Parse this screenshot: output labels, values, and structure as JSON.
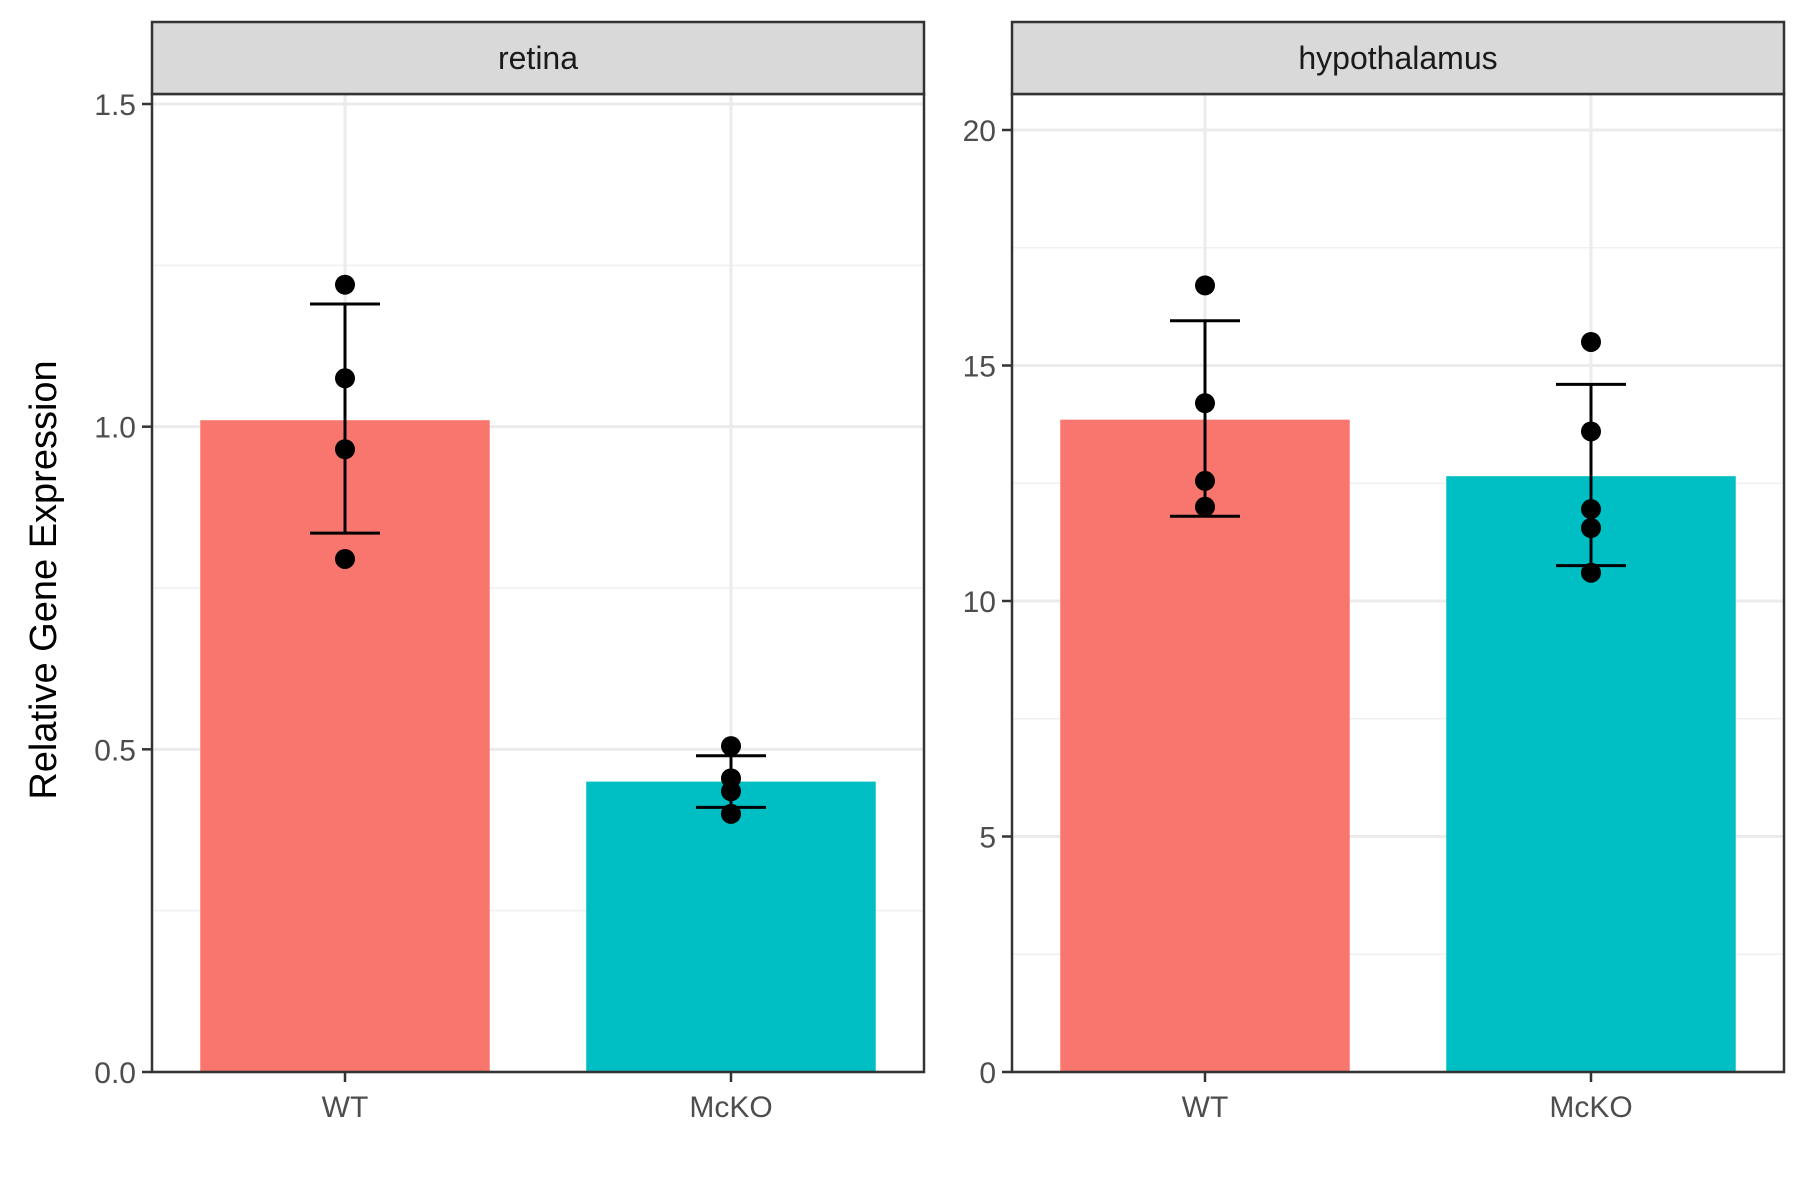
{
  "chart_data": {
    "type": "bar",
    "ylabel": "Relative Gene Expression",
    "categories": [
      "WT",
      "McKO"
    ],
    "colors": {
      "WT": "#F8766D",
      "McKO": "#00BFC4"
    },
    "grid": true,
    "panels": [
      {
        "name": "retina",
        "ylim": [
          0,
          1.5
        ],
        "yticks": [
          0.0,
          0.5,
          1.0,
          1.5
        ],
        "ytick_labels": [
          "0.0",
          "0.5",
          "1.0",
          "1.5"
        ],
        "means": [
          1.01,
          0.45
        ],
        "error_bars": [
          [
            0.835,
            1.19
          ],
          [
            0.41,
            0.49
          ]
        ],
        "points": [
          [
            1.22,
            1.075,
            0.965,
            0.795
          ],
          [
            0.505,
            0.455,
            0.435,
            0.4
          ]
        ]
      },
      {
        "name": "hypothalamus",
        "ylim": [
          0,
          20
        ],
        "yticks": [
          0,
          5,
          10,
          15,
          20
        ],
        "ytick_labels": [
          "0",
          "5",
          "10",
          "15",
          "20"
        ],
        "means": [
          13.85,
          12.65
        ],
        "error_bars": [
          [
            11.8,
            15.95
          ],
          [
            10.75,
            14.6
          ]
        ],
        "points": [
          [
            16.7,
            14.2,
            12.55,
            12.0
          ],
          [
            15.5,
            13.6,
            11.95,
            11.55,
            10.6
          ]
        ]
      }
    ]
  }
}
